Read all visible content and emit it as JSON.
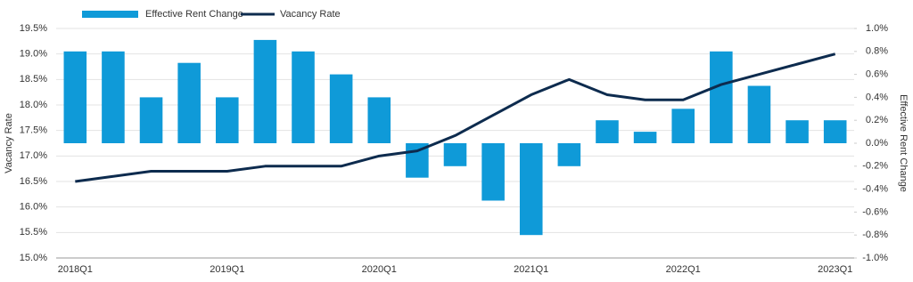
{
  "chart_data": {
    "type": "bar-line",
    "categories": [
      "2018Q1",
      null,
      null,
      null,
      "2019Q1",
      null,
      null,
      null,
      "2020Q1",
      null,
      null,
      null,
      "2021Q1",
      null,
      null,
      null,
      "2022Q1",
      null,
      null,
      null,
      "2023Q1"
    ],
    "series": [
      {
        "name": "Effective Rent Change",
        "type": "bar",
        "axis": "y2",
        "color": "#0f9ad8",
        "values": [
          0.8,
          0.8,
          0.4,
          0.7,
          0.4,
          0.9,
          0.8,
          0.6,
          0.4,
          -0.3,
          -0.2,
          -0.5,
          -0.8,
          -0.2,
          0.2,
          0.1,
          0.3,
          0.8,
          0.5,
          0.2,
          0.2
        ]
      },
      {
        "name": "Vacancy Rate",
        "type": "line",
        "axis": "y",
        "color": "#0d2b4e",
        "values": [
          16.5,
          16.6,
          16.7,
          16.7,
          16.7,
          16.8,
          16.8,
          16.8,
          17.0,
          17.1,
          17.4,
          17.8,
          18.2,
          18.5,
          18.2,
          18.1,
          18.1,
          18.4,
          18.6,
          18.8,
          19.0
        ]
      }
    ],
    "y_label": "Vacancy Rate",
    "y2_label": "Effective Rent Change",
    "ylim": [
      15.0,
      19.5
    ],
    "yticks": [
      {
        "value": 15.0,
        "label": "15.0%"
      },
      {
        "value": 15.5,
        "label": "15.5%"
      },
      {
        "value": 16.0,
        "label": "16.0%"
      },
      {
        "value": 16.5,
        "label": "16.5%"
      },
      {
        "value": 17.0,
        "label": "17.0%"
      },
      {
        "value": 17.5,
        "label": "17.5%"
      },
      {
        "value": 18.0,
        "label": "18.0%"
      },
      {
        "value": 18.5,
        "label": "18.5%"
      },
      {
        "value": 19.0,
        "label": "19.0%"
      },
      {
        "value": 19.5,
        "label": "19.5%"
      }
    ],
    "y2lim": [
      -1.0,
      1.0
    ],
    "y2ticks": [
      {
        "value": -1.0,
        "label": "-1.0%"
      },
      {
        "value": -0.8,
        "label": "-0.8%"
      },
      {
        "value": -0.6,
        "label": "-0.6%"
      },
      {
        "value": -0.4,
        "label": "-0.4%"
      },
      {
        "value": -0.2,
        "label": "-0.2%"
      },
      {
        "value": 0.0,
        "label": "0.0%"
      },
      {
        "value": 0.2,
        "label": "0.2%"
      },
      {
        "value": 0.4,
        "label": "0.4%"
      },
      {
        "value": 0.6,
        "label": "0.6%"
      },
      {
        "value": 0.8,
        "label": "0.8%"
      },
      {
        "value": 1.0,
        "label": "1.0%"
      }
    ],
    "grid": true
  }
}
